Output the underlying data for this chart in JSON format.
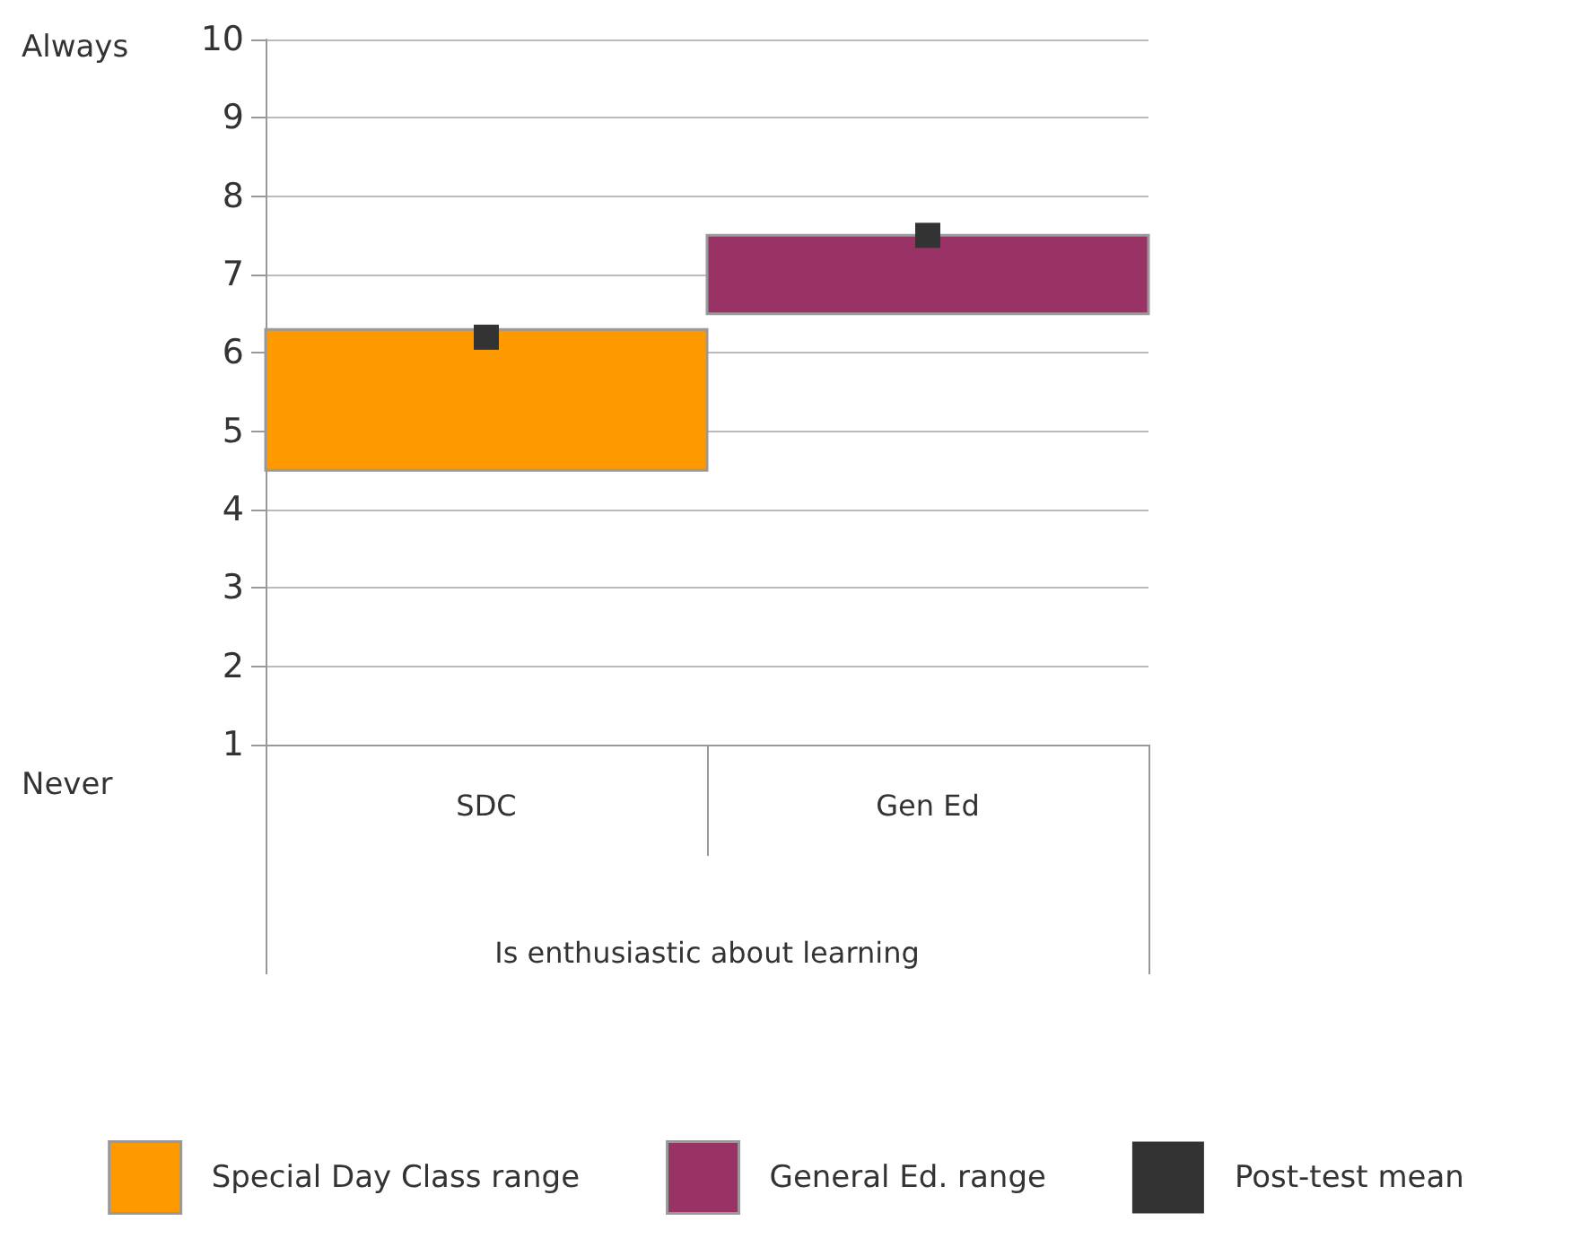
{
  "chart_data": {
    "type": "bar",
    "categories": [
      "SDC",
      "Gen Ed"
    ],
    "xlabel": "Is enthusiastic about learning",
    "series": [
      {
        "name": "Special Day Class range",
        "color": "#ff9900",
        "values": [
          1.8,
          null
        ],
        "base": [
          4.5,
          null
        ]
      },
      {
        "name": "General Ed. range",
        "color": "#993366",
        "values": [
          null,
          1.0
        ],
        "base": [
          null,
          6.5
        ]
      },
      {
        "name": "Post-test mean",
        "type": "scatter",
        "color": "#333333",
        "x": [
          "SDC",
          "Gen Ed"
        ],
        "values": [
          6.2,
          7.5
        ],
        "marker": "square"
      }
    ],
    "ylim": [
      1,
      10
    ],
    "yticks": [
      1,
      2,
      3,
      4,
      5,
      6,
      7,
      8,
      9,
      10
    ],
    "grid": "y",
    "legend": "bottom",
    "annotations": [
      "Always",
      "Never"
    ]
  }
}
